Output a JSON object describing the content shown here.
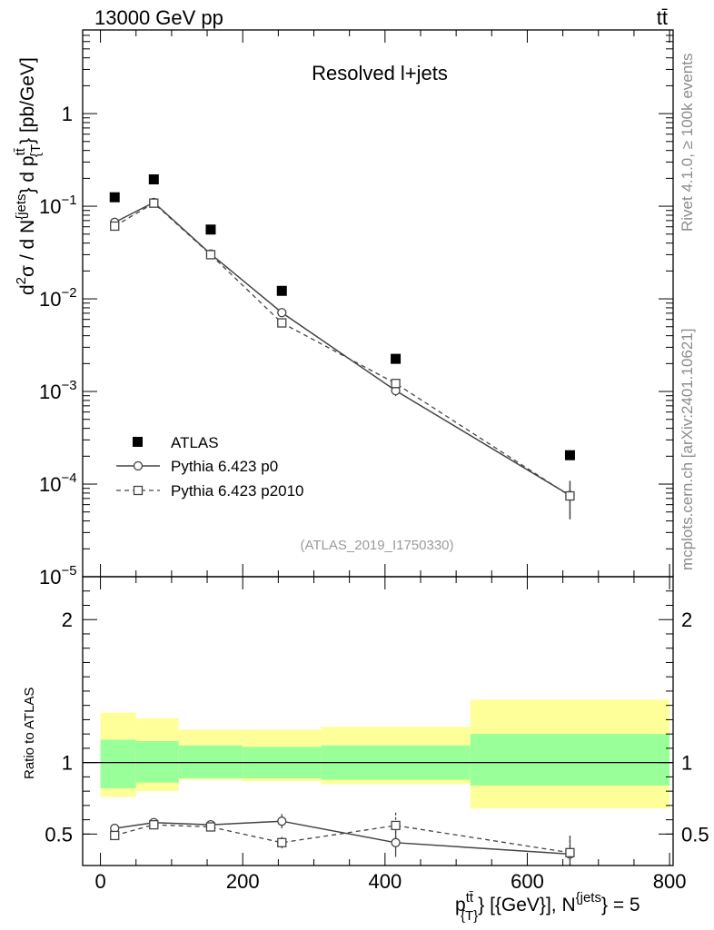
{
  "chart_data": {
    "type": "scatter",
    "header": {
      "left": "13000 GeV pp",
      "right": "tt̄"
    },
    "title": "Resolved l+jets",
    "analysis_tag": "(ATLAS_2019_I1750330)",
    "side_labels": {
      "rivet": "Rivet 4.1.0, ≥ 100k events",
      "source": "mcplots.cern.ch [arXiv:2401.10621]"
    },
    "xlabel": {
      "p": "p",
      "sup": "tt̄",
      "sub": "{T}",
      "mid": "} [{GeV}], N",
      "sup2": "{jets",
      "end": "} = 5"
    },
    "ylabel": {
      "d2": "d",
      "two": "2",
      "sigma": "σ / d N",
      "jets_sup": "{jets",
      "dp": "} d p",
      "tt_sup": "tt̄",
      "t_sub": "{T",
      "units": "} [pb/GeV]"
    },
    "ratio_ylabel": "Ratio to ATLAS",
    "xlim": [
      -25,
      805
    ],
    "ylim_main": [
      1e-05,
      8
    ],
    "ylim_ratio": [
      0.28,
      2.3
    ],
    "x_ticks": [
      {
        "value": 0,
        "label": "0"
      },
      {
        "value": 200,
        "label": "200"
      },
      {
        "value": 400,
        "label": "400"
      },
      {
        "value": 600,
        "label": "600"
      },
      {
        "value": 800,
        "label": "800"
      }
    ],
    "y_ticks_main": [
      {
        "value": 1,
        "base": "1",
        "exp": ""
      },
      {
        "value": 0.1,
        "base": "10",
        "exp": "−1"
      },
      {
        "value": 0.01,
        "base": "10",
        "exp": "−2"
      },
      {
        "value": 0.001,
        "base": "10",
        "exp": "−3"
      },
      {
        "value": 0.0001,
        "base": "10",
        "exp": "−4"
      },
      {
        "value": 1e-05,
        "base": "10",
        "exp": "−5"
      }
    ],
    "y_ticks_ratio": [
      {
        "value": 2,
        "label": "2"
      },
      {
        "value": 1,
        "label": "1"
      },
      {
        "value": 0.5,
        "label": "0.5"
      }
    ],
    "bins": [
      {
        "low": 0,
        "high": 50
      },
      {
        "low": 50,
        "high": 110
      },
      {
        "low": 110,
        "high": 200
      },
      {
        "low": 200,
        "high": 310
      },
      {
        "low": 310,
        "high": 520
      },
      {
        "low": 520,
        "high": 800
      }
    ],
    "x": [
      20,
      75,
      155,
      255,
      415,
      660
    ],
    "series": [
      {
        "name": "ATLAS",
        "marker": "filled-square",
        "values": [
          0.125,
          0.195,
          0.056,
          0.0122,
          0.00225,
          0.000205
        ],
        "band_inner": [
          [
            0.82,
            1.16
          ],
          [
            0.86,
            1.15
          ],
          [
            0.89,
            1.12
          ],
          [
            0.89,
            1.11
          ],
          [
            0.88,
            1.12
          ],
          [
            0.84,
            1.2
          ]
        ],
        "band_outer": [
          [
            0.76,
            1.35
          ],
          [
            0.8,
            1.31
          ],
          [
            0.88,
            1.23
          ],
          [
            0.87,
            1.23
          ],
          [
            0.85,
            1.25
          ],
          [
            0.68,
            1.44
          ]
        ]
      },
      {
        "name": "Pythia 6.423 p0",
        "marker": "open-circle",
        "line": "solid",
        "values": [
          0.067,
          0.11,
          0.0305,
          0.0071,
          0.00102,
          7.55e-05
        ],
        "errors": [
          0.003,
          0.005,
          0.0014,
          0.0004,
          0.00013,
          3.3e-05
        ],
        "ratio": [
          0.54,
          0.58,
          0.565,
          0.59,
          0.44,
          0.36
        ],
        "ratio_err": [
          0.02,
          0.015,
          0.025,
          0.05,
          0.1,
          0.12
        ]
      },
      {
        "name": "Pythia 6.423 p2010",
        "marker": "open-square",
        "line": "dashed",
        "values": [
          0.061,
          0.108,
          0.03,
          0.0055,
          0.00122,
          7.45e-05
        ],
        "errors": [
          0.003,
          0.005,
          0.0014,
          0.0004,
          0.00014,
          3.3e-05
        ],
        "ratio": [
          0.49,
          0.565,
          0.55,
          0.44,
          0.56,
          0.37
        ],
        "ratio_err": [
          0.03,
          0.015,
          0.025,
          0.04,
          0.09,
          0.12
        ]
      }
    ]
  }
}
